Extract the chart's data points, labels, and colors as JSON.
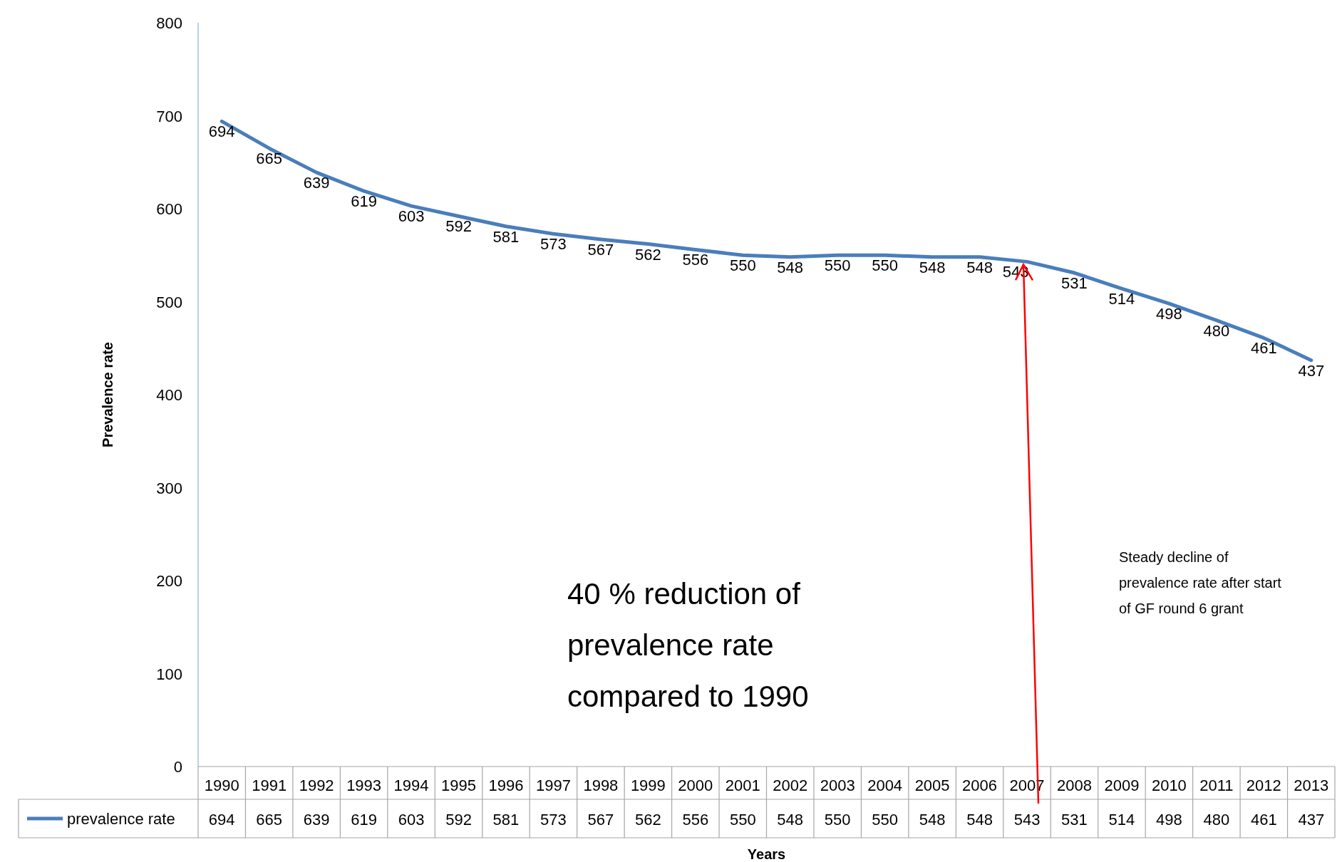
{
  "chart_data": {
    "type": "line",
    "xlabel": "Years",
    "ylabel": "Prevalence rate",
    "categories": [
      "1990",
      "1991",
      "1992",
      "1993",
      "1994",
      "1995",
      "1996",
      "1997",
      "1998",
      "1999",
      "2000",
      "2001",
      "2002",
      "2003",
      "2004",
      "2005",
      "2006",
      "2007",
      "2008",
      "2009",
      "2010",
      "2011",
      "2012",
      "2013"
    ],
    "series": [
      {
        "name": "prevalence rate",
        "color": "#4a7ebb",
        "values": [
          694,
          665,
          639,
          619,
          603,
          592,
          581,
          573,
          567,
          562,
          556,
          550,
          548,
          550,
          550,
          548,
          548,
          543,
          531,
          514,
          498,
          480,
          461,
          437
        ]
      }
    ],
    "ylim": [
      0,
      800
    ],
    "yticks": [
      0,
      100,
      200,
      300,
      400,
      500,
      600,
      700,
      800
    ],
    "grid": false,
    "legend": "bottom",
    "data_labels": true,
    "marker": "none",
    "line_style": "solid",
    "annotations": [
      "40 % reduction of prevalence rate compared to 1990",
      "Steady decline of prevalence rate after start of GF round 6 grant",
      {
        "text": "694",
        "x": "1990",
        "y": 694
      },
      {
        "text": "665",
        "x": "1991",
        "y": 665
      },
      {
        "text": "639",
        "x": "1992",
        "y": 639
      },
      {
        "text": "619",
        "x": "1993",
        "y": 619
      },
      {
        "text": "603",
        "x": "1994",
        "y": 603
      },
      {
        "text": "592",
        "x": "1995",
        "y": 592
      },
      {
        "text": "581",
        "x": "1996",
        "y": 581
      },
      {
        "text": "573",
        "x": "1997",
        "y": 573
      },
      {
        "text": "567",
        "x": "1998",
        "y": 567
      },
      {
        "text": "562",
        "x": "1999",
        "y": 562
      },
      {
        "text": "556",
        "x": "2000",
        "y": 556
      },
      {
        "text": "550",
        "x": "2001",
        "y": 550
      },
      {
        "text": "548",
        "x": "2002",
        "y": 548
      },
      {
        "text": "550",
        "x": "2003",
        "y": 550
      },
      {
        "text": "550",
        "x": "2004",
        "y": 550
      },
      {
        "text": "548",
        "x": "2005",
        "y": 548
      },
      {
        "text": "548",
        "x": "2006",
        "y": 548
      },
      {
        "text": "543",
        "x": "2007",
        "y": 543
      },
      {
        "text": "531",
        "x": "2008",
        "y": 531
      },
      {
        "text": "514",
        "x": "2009",
        "y": 514
      },
      {
        "text": "498",
        "x": "2010",
        "y": 498
      },
      {
        "text": "480",
        "x": "2011",
        "y": 480
      },
      {
        "text": "461",
        "x": "2012",
        "y": 461
      },
      {
        "text": "437",
        "x": "2013",
        "y": 437
      }
    ]
  }
}
